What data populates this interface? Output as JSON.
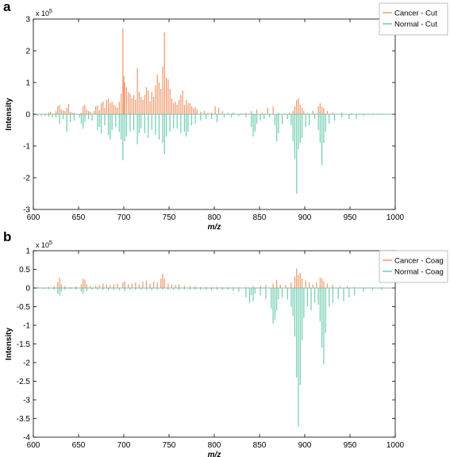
{
  "colors": {
    "cancer": "#f0986a",
    "normal": "#6fcdb0",
    "axis": "#000000",
    "zero": "#7fbfa8"
  },
  "chart_data": [
    {
      "type": "bar",
      "panel_label": "a",
      "title": "",
      "xlabel": "m/z",
      "ylabel": "Intensity",
      "y_exponent_base": "x 10",
      "y_exponent_power": "5",
      "xlim": [
        600,
        1000
      ],
      "ylim": [
        -3,
        3
      ],
      "x_ticks": [
        600,
        650,
        700,
        750,
        800,
        850,
        900,
        950,
        1000
      ],
      "y_ticks": [
        -3,
        -2,
        -1,
        0,
        1,
        2,
        3
      ],
      "grid": false,
      "legend_position": "top-right",
      "series": [
        {
          "name": "Cancer - Cut",
          "color": "#f0986a",
          "x": [
            617,
            619,
            625,
            627,
            629,
            631,
            633,
            635,
            637,
            639,
            641,
            643,
            645,
            653,
            655,
            657,
            659,
            661,
            663,
            667,
            669,
            671,
            673,
            675,
            677,
            679,
            681,
            683,
            685,
            687,
            689,
            691,
            693,
            695,
            697,
            699,
            700,
            701,
            703,
            705,
            707,
            709,
            711,
            713,
            715,
            717,
            719,
            721,
            723,
            725,
            727,
            729,
            731,
            733,
            735,
            737,
            739,
            741,
            743,
            745,
            747,
            749,
            751,
            753,
            755,
            757,
            759,
            761,
            763,
            765,
            767,
            769,
            771,
            773,
            775,
            777,
            779,
            781,
            785,
            789,
            793,
            797,
            801,
            805,
            809,
            815,
            821,
            829,
            835,
            841,
            847,
            853,
            859,
            865,
            871,
            877,
            883,
            887,
            889,
            891,
            893,
            895,
            897,
            899,
            903,
            909,
            915,
            917,
            919,
            921,
            925,
            931,
            941,
            951,
            961,
            971,
            981
          ],
          "values": [
            0.05,
            0.08,
            0.1,
            0.25,
            0.3,
            0.15,
            0.12,
            0.1,
            0.2,
            0.32,
            0.08,
            0.05,
            0.05,
            0.05,
            0.25,
            0.3,
            0.15,
            0.1,
            0.08,
            0.1,
            0.25,
            0.28,
            0.12,
            0.35,
            0.4,
            0.2,
            0.45,
            0.5,
            0.35,
            0.4,
            0.3,
            0.25,
            0.2,
            0.4,
            0.65,
            2.7,
            1.2,
            1.0,
            0.85,
            0.7,
            0.65,
            0.5,
            0.6,
            0.45,
            1.45,
            0.7,
            0.55,
            0.45,
            0.6,
            0.85,
            0.75,
            0.4,
            0.7,
            0.55,
            0.9,
            1.25,
            1.0,
            0.8,
            1.5,
            2.58,
            1.15,
            1.1,
            0.8,
            0.5,
            0.35,
            0.4,
            0.3,
            0.45,
            0.6,
            0.75,
            0.3,
            0.45,
            0.35,
            0.35,
            0.25,
            0.2,
            0.22,
            0.15,
            0.08,
            0.1,
            0.05,
            0.05,
            0.25,
            0.2,
            0.1,
            0.05,
            0.05,
            0.03,
            0.05,
            0.1,
            0.15,
            0.05,
            0.2,
            0.25,
            0.05,
            0.03,
            0.05,
            0.1,
            0.25,
            0.45,
            0.5,
            0.3,
            0.2,
            0.1,
            0.05,
            0.1,
            0.25,
            0.35,
            0.25,
            0.2,
            0.1,
            0.05,
            0.05,
            0.03,
            0.02,
            0.02,
            0.02
          ]
        },
        {
          "name": "Normal - Cut",
          "color": "#6fcdb0",
          "x": [
            605,
            609,
            613,
            617,
            621,
            625,
            629,
            633,
            637,
            641,
            645,
            651,
            653,
            655,
            657,
            661,
            665,
            671,
            673,
            675,
            679,
            683,
            685,
            687,
            691,
            695,
            697,
            699,
            701,
            703,
            707,
            711,
            715,
            717,
            719,
            723,
            727,
            731,
            735,
            739,
            743,
            745,
            747,
            751,
            755,
            759,
            763,
            767,
            769,
            771,
            775,
            779,
            785,
            791,
            797,
            803,
            811,
            819,
            827,
            835,
            841,
            843,
            845,
            847,
            851,
            855,
            861,
            867,
            869,
            871,
            875,
            881,
            885,
            887,
            889,
            891,
            893,
            895,
            897,
            901,
            905,
            911,
            915,
            917,
            919,
            921,
            923,
            927,
            933,
            941,
            949,
            957,
            965,
            975,
            985
          ],
          "values": [
            -0.05,
            -0.05,
            -0.05,
            -0.08,
            -0.1,
            -0.1,
            -0.3,
            -0.15,
            -0.55,
            -0.25,
            -0.2,
            -0.1,
            -0.3,
            -0.45,
            -0.25,
            -0.15,
            -0.2,
            -0.5,
            -0.4,
            -0.6,
            -0.35,
            -0.65,
            -0.8,
            -0.5,
            -0.4,
            -0.55,
            -0.8,
            -1.45,
            -0.85,
            -0.7,
            -0.55,
            -0.5,
            -0.95,
            -0.6,
            -0.45,
            -0.6,
            -0.75,
            -0.5,
            -0.65,
            -0.8,
            -0.9,
            -1.25,
            -0.7,
            -0.55,
            -0.45,
            -0.45,
            -0.6,
            -0.55,
            -0.7,
            -0.55,
            -0.35,
            -0.3,
            -0.2,
            -0.15,
            -0.15,
            -0.25,
            -0.1,
            -0.1,
            -0.05,
            -0.1,
            -0.4,
            -0.7,
            -0.55,
            -0.3,
            -0.2,
            -0.15,
            -0.1,
            -0.35,
            -0.85,
            -0.6,
            -0.3,
            -0.15,
            -0.35,
            -0.85,
            -1.4,
            -2.5,
            -1.1,
            -0.9,
            -0.75,
            -0.4,
            -0.35,
            -0.15,
            -0.5,
            -0.9,
            -1.6,
            -0.9,
            -0.55,
            -0.3,
            -0.2,
            -0.1,
            -0.15,
            -0.15,
            -0.05,
            -0.03,
            -0.02
          ]
        }
      ]
    },
    {
      "type": "bar",
      "panel_label": "b",
      "title": "",
      "xlabel": "m/z",
      "ylabel": "Intensity",
      "y_exponent_base": "x 10",
      "y_exponent_power": "5",
      "xlim": [
        600,
        1000
      ],
      "ylim": [
        -4,
        1
      ],
      "x_ticks": [
        600,
        650,
        700,
        750,
        800,
        850,
        900,
        950,
        1000
      ],
      "y_ticks": [
        -4,
        -3.5,
        -3,
        -2.5,
        -2,
        -1.5,
        -1,
        -0.5,
        0,
        0.5,
        1
      ],
      "grid": false,
      "legend_position": "top-right",
      "series": [
        {
          "name": "Cancer - Coag",
          "color": "#f0986a",
          "x": [
            605,
            611,
            617,
            623,
            627,
            629,
            631,
            635,
            641,
            647,
            653,
            655,
            657,
            659,
            663,
            669,
            673,
            677,
            681,
            685,
            689,
            693,
            699,
            701,
            705,
            709,
            713,
            717,
            721,
            725,
            729,
            733,
            737,
            741,
            743,
            745,
            749,
            753,
            757,
            761,
            767,
            773,
            779,
            785,
            791,
            797,
            803,
            809,
            815,
            821,
            827,
            835,
            843,
            851,
            857,
            865,
            869,
            873,
            879,
            885,
            889,
            891,
            893,
            895,
            897,
            901,
            905,
            909,
            913,
            917,
            919,
            921,
            925,
            931,
            939,
            947,
            955,
            965,
            975,
            985
          ],
          "values": [
            0.03,
            0.02,
            0.03,
            0.05,
            0.15,
            0.28,
            0.1,
            0.05,
            0.03,
            0.05,
            0.1,
            0.25,
            0.22,
            0.1,
            0.05,
            0.06,
            0.08,
            0.12,
            0.1,
            0.08,
            0.1,
            0.12,
            0.15,
            0.18,
            0.1,
            0.12,
            0.15,
            0.1,
            0.18,
            0.2,
            0.12,
            0.18,
            0.15,
            0.25,
            0.38,
            0.25,
            0.12,
            0.1,
            0.08,
            0.1,
            0.06,
            0.05,
            0.04,
            0.03,
            0.03,
            0.03,
            0.03,
            0.02,
            0.02,
            0.02,
            0.02,
            0.03,
            0.05,
            0.06,
            0.08,
            0.12,
            0.22,
            0.1,
            0.08,
            0.15,
            0.3,
            0.52,
            0.35,
            0.4,
            0.25,
            0.2,
            0.15,
            0.1,
            0.15,
            0.28,
            0.25,
            0.18,
            0.12,
            0.08,
            0.05,
            0.05,
            0.03,
            0.02,
            0.02,
            0.02
          ]
        },
        {
          "name": "Normal - Coag",
          "color": "#6fcdb0",
          "x": [
            605,
            611,
            617,
            623,
            627,
            629,
            631,
            635,
            641,
            647,
            653,
            655,
            659,
            665,
            671,
            677,
            683,
            689,
            695,
            701,
            707,
            713,
            719,
            725,
            731,
            737,
            743,
            749,
            755,
            761,
            767,
            773,
            779,
            785,
            791,
            797,
            803,
            809,
            815,
            821,
            827,
            835,
            839,
            841,
            843,
            845,
            851,
            857,
            863,
            865,
            867,
            869,
            871,
            875,
            881,
            885,
            887,
            889,
            891,
            893,
            895,
            897,
            899,
            903,
            907,
            911,
            915,
            917,
            919,
            921,
            923,
            927,
            931,
            937,
            943,
            949,
            955,
            965,
            975,
            985
          ],
          "values": [
            -0.02,
            -0.03,
            -0.03,
            -0.05,
            -0.15,
            -0.2,
            -0.1,
            -0.05,
            -0.03,
            -0.05,
            -0.1,
            -0.15,
            -0.08,
            -0.05,
            -0.05,
            -0.05,
            -0.06,
            -0.05,
            -0.06,
            -0.08,
            -0.05,
            -0.05,
            -0.05,
            -0.05,
            -0.06,
            -0.05,
            -0.05,
            -0.05,
            -0.05,
            -0.05,
            -0.04,
            -0.05,
            -0.04,
            -0.05,
            -0.05,
            -0.05,
            -0.05,
            -0.05,
            -0.05,
            -0.08,
            -0.1,
            -0.25,
            -0.4,
            -0.2,
            -0.35,
            -0.15,
            -0.2,
            -0.3,
            -0.55,
            -0.95,
            -0.85,
            -0.6,
            -0.3,
            -0.25,
            -0.3,
            -0.5,
            -0.75,
            -1.3,
            -2.4,
            -3.72,
            -2.6,
            -1.4,
            -0.8,
            -0.5,
            -0.6,
            -0.4,
            -0.45,
            -0.9,
            -1.6,
            -2.05,
            -1.2,
            -0.5,
            -0.4,
            -0.3,
            -0.35,
            -0.25,
            -0.2,
            -0.1,
            -0.05,
            -0.05
          ]
        }
      ]
    }
  ]
}
